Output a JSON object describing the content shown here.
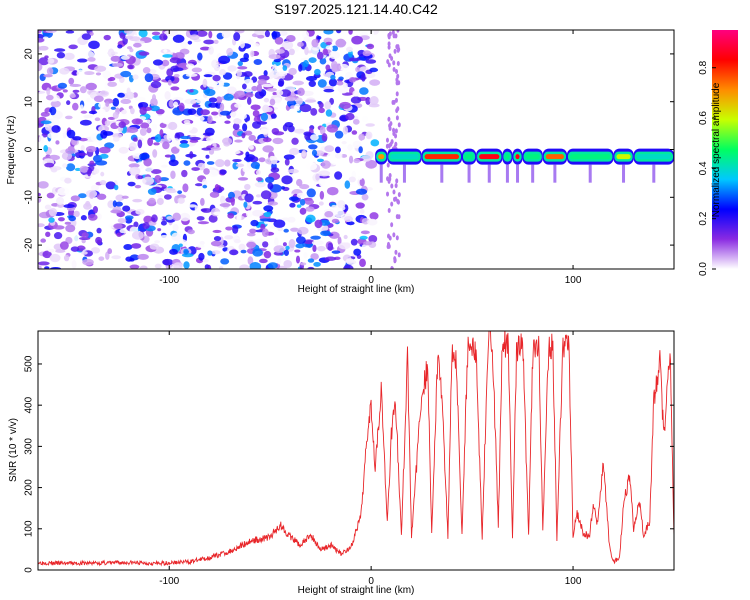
{
  "title": "S197.2025.121.14.40.C42",
  "colorbar": {
    "label": "Normalized spectral amplitude",
    "ticks": [
      "0.0",
      "0.2",
      "0.4",
      "0.6",
      "0.8"
    ],
    "tick_values": [
      0.0,
      0.2,
      0.4,
      0.6,
      0.8
    ],
    "range": [
      0.0,
      0.95
    ],
    "stops": [
      "#ffffff",
      "#8a2be2",
      "#0000ff",
      "#00c8ff",
      "#00ff60",
      "#c8ff00",
      "#ff8c00",
      "#ff0000",
      "#ff007f"
    ]
  },
  "chart_data": [
    {
      "type": "heatmap",
      "xlabel": "Height of straight line (km)",
      "ylabel": "Frequency (Hz)",
      "xlim": [
        -165,
        150
      ],
      "ylim": [
        -25,
        25
      ],
      "x_ticks": [
        -100,
        0,
        100
      ],
      "x_tick_labels": [
        "-100",
        "0",
        "100"
      ],
      "y_ticks": [
        -20,
        -10,
        0,
        10,
        20
      ],
      "y_tick_labels": [
        "-20",
        "-10",
        "0",
        "10",
        "20"
      ],
      "description_of_content": "Noise speckle for heights below ~2 km; narrow band near 0 Hz from ~2 to 150 km",
      "noise_region_x": [
        -165,
        2
      ],
      "band_frequency_hz": -1.5,
      "band_segments": [
        {
          "x": [
            2,
            8
          ],
          "amp": 0.7
        },
        {
          "x": [
            8,
            25
          ],
          "amp": 0.4
        },
        {
          "x": [
            25,
            45
          ],
          "amp": 0.8
        },
        {
          "x": [
            45,
            52
          ],
          "amp": 0.45
        },
        {
          "x": [
            52,
            65
          ],
          "amp": 0.85
        },
        {
          "x": [
            65,
            70
          ],
          "amp": 0.45
        },
        {
          "x": [
            70,
            75
          ],
          "amp": 0.85
        },
        {
          "x": [
            75,
            85
          ],
          "amp": 0.45
        },
        {
          "x": [
            85,
            97
          ],
          "amp": 0.75
        },
        {
          "x": [
            97,
            120
          ],
          "amp": 0.45
        },
        {
          "x": [
            120,
            130
          ],
          "amp": 0.6
        },
        {
          "x": [
            130,
            150
          ],
          "amp": 0.4
        }
      ]
    },
    {
      "type": "line",
      "xlabel": "Height of straight line (km)",
      "ylabel": "SNR (10 * v/v)",
      "xlim": [
        -165,
        150
      ],
      "ylim": [
        0,
        580
      ],
      "x_ticks": [
        -100,
        0,
        100
      ],
      "x_tick_labels": [
        "-100",
        "0",
        "100"
      ],
      "y_ticks": [
        0,
        100,
        200,
        300,
        400,
        500
      ],
      "y_tick_labels": [
        "0",
        "100",
        "200",
        "300",
        "400",
        "500"
      ],
      "color": "#e8262a",
      "series": [
        {
          "x": [
            -165,
            -150,
            -135,
            -120,
            -105,
            -90,
            -80,
            -70,
            -60,
            -50,
            -45,
            -40,
            -35,
            -30,
            -25,
            -20,
            -15,
            -10,
            -5,
            -2,
            0,
            2,
            5,
            8,
            10,
            12,
            15,
            18,
            20,
            25,
            28,
            30,
            33,
            35,
            38,
            40,
            42,
            45,
            48,
            50,
            52,
            55,
            58,
            60,
            63,
            65,
            68,
            70,
            72,
            75,
            78,
            80,
            83,
            85,
            88,
            90,
            92,
            95,
            98,
            100,
            102,
            105,
            108,
            110,
            112,
            115,
            118,
            120,
            123,
            125,
            128,
            130,
            133,
            135,
            138,
            140,
            143,
            145,
            148,
            150
          ],
          "y": [
            18,
            16,
            17,
            18,
            16,
            20,
            30,
            45,
            70,
            80,
            110,
            80,
            60,
            85,
            50,
            60,
            40,
            55,
            130,
            330,
            410,
            250,
            440,
            110,
            330,
            420,
            80,
            520,
            80,
            430,
            490,
            90,
            520,
            430,
            80,
            540,
            520,
            90,
            560,
            540,
            520,
            80,
            570,
            560,
            110,
            560,
            540,
            75,
            530,
            560,
            80,
            520,
            540,
            90,
            560,
            540,
            75,
            550,
            540,
            80,
            140,
            90,
            80,
            160,
            110,
            260,
            60,
            20,
            30,
            160,
            230,
            100,
            170,
            80,
            120,
            420,
            500,
            320,
            540,
            80
          ]
        }
      ]
    }
  ]
}
